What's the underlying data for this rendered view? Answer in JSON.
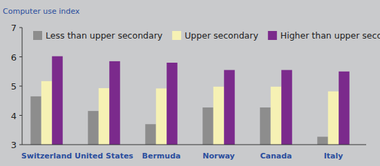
{
  "chart_data": {
    "type": "bar",
    "y_label": "Computer use index",
    "categories": [
      "Switzerland",
      "United States",
      "Bermuda",
      "Norway",
      "Canada",
      "Italy"
    ],
    "series": [
      {
        "name": "Less than upper secondary",
        "color": "#8d8d8d",
        "values": [
          4.65,
          4.15,
          3.7,
          4.27,
          4.27,
          3.27
        ]
      },
      {
        "name": "Upper secondary",
        "color": "#f6f1b4",
        "values": [
          5.17,
          4.93,
          4.92,
          4.98,
          4.98,
          4.82
        ]
      },
      {
        "name": "Higher than upper secondary",
        "color": "#7b2a8c",
        "values": [
          6.02,
          5.85,
          5.8,
          5.55,
          5.55,
          5.5
        ]
      }
    ],
    "ylim": [
      3,
      7
    ],
    "yticks": [
      3,
      4,
      5,
      6,
      7
    ],
    "grid": false,
    "legend": "top"
  }
}
